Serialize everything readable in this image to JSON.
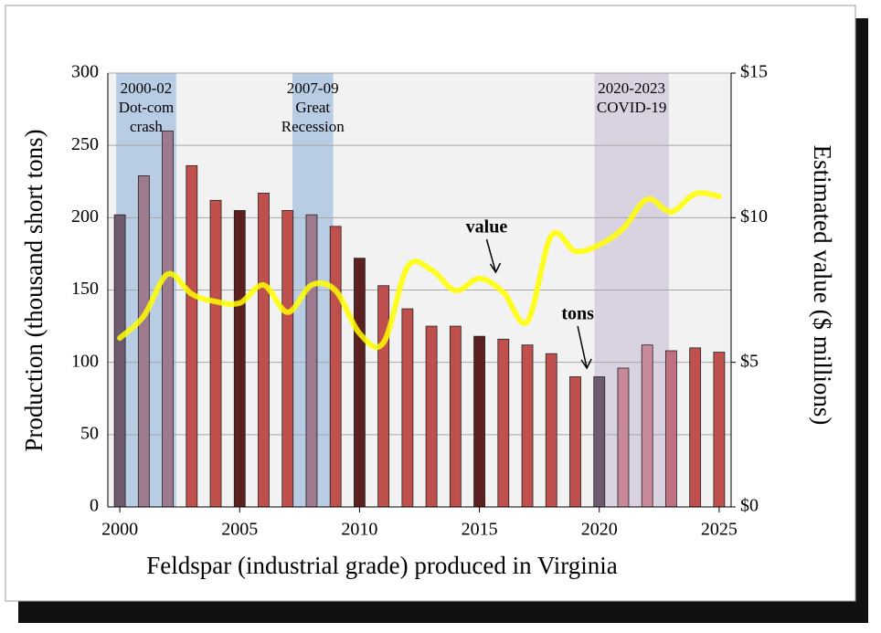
{
  "chart_data": {
    "type": "bar-line",
    "x_label": "Feldspar (industrial grade) produced in Virginia",
    "y_label": "Production (thousand short tons)",
    "y2_label": "Estimated value ($ millions)",
    "x": [
      2000,
      2001,
      2002,
      2003,
      2004,
      2005,
      2006,
      2007,
      2008,
      2009,
      2010,
      2011,
      2012,
      2013,
      2014,
      2015,
      2016,
      2017,
      2018,
      2019,
      2020,
      2021,
      2022,
      2023,
      2024,
      2025
    ],
    "xlim": [
      1999.5,
      2025.5
    ],
    "xticks": [
      2000,
      2005,
      2010,
      2015,
      2020,
      2025
    ],
    "ylim": [
      0,
      300
    ],
    "yticks": [
      0,
      50,
      100,
      150,
      200,
      250,
      300
    ],
    "y2lim": [
      0,
      15
    ],
    "y2ticks": [
      {
        "value": 0,
        "label": "$0"
      },
      {
        "value": 5,
        "label": "$5"
      },
      {
        "value": 10,
        "label": "$10"
      },
      {
        "value": 15,
        "label": "$15"
      }
    ],
    "grid": true,
    "plot_background": "#f2f2f2",
    "series": [
      {
        "type": "bar",
        "color": "#c0504d",
        "colors": [
          "#6e5a6e",
          "#9e7a8e",
          "#9e7a8e",
          "#c0504d",
          "#c0504d",
          "#5c2020",
          "#c0504d",
          "#c0504d",
          "#9e7a8e",
          "#c0504d",
          "#5c2020",
          "#c0504d",
          "#c0504d",
          "#c0504d",
          "#c0504d",
          "#5c2020",
          "#c0504d",
          "#c0504d",
          "#c0504d",
          "#c0504d",
          "#6e5a6e",
          "#c88a9a",
          "#c88a9a",
          "#c07080",
          "#c0504d",
          "#c0504d"
        ],
        "values": [
          202,
          229,
          260,
          236,
          212,
          205,
          217,
          205,
          202,
          194,
          172,
          153,
          137,
          125,
          125,
          118,
          116,
          112,
          106,
          90,
          90,
          96,
          112,
          108,
          110,
          107
        ]
      },
      {
        "type": "line",
        "axis": "y2",
        "color": "#ffff00",
        "values": [
          5.84,
          6.6,
          8.05,
          7.36,
          7.1,
          7.05,
          7.67,
          6.73,
          7.67,
          7.48,
          6.0,
          5.68,
          8.3,
          8.2,
          7.48,
          7.9,
          7.42,
          6.41,
          9.38,
          8.84,
          9.06,
          9.63,
          10.64,
          10.2,
          10.83,
          10.74
        ]
      }
    ],
    "periods": [
      {
        "start": 1999.85,
        "end": 2002.35,
        "color": "#b8cce4",
        "lines": [
          "2000-02",
          "Dot-com",
          "crash"
        ]
      },
      {
        "start": 2007.2,
        "end": 2008.9,
        "color": "#b8cce4",
        "lines": [
          "2007-09",
          "Great",
          "Recession"
        ]
      },
      {
        "start": 2019.8,
        "end": 2022.9,
        "color": "#d9d2e0",
        "lines": [
          "2020-2023",
          "COVID-19"
        ]
      }
    ],
    "annotations": [
      {
        "text": "value",
        "x": 2015.3
      },
      {
        "text": "tons",
        "x": 2019.1
      }
    ]
  }
}
